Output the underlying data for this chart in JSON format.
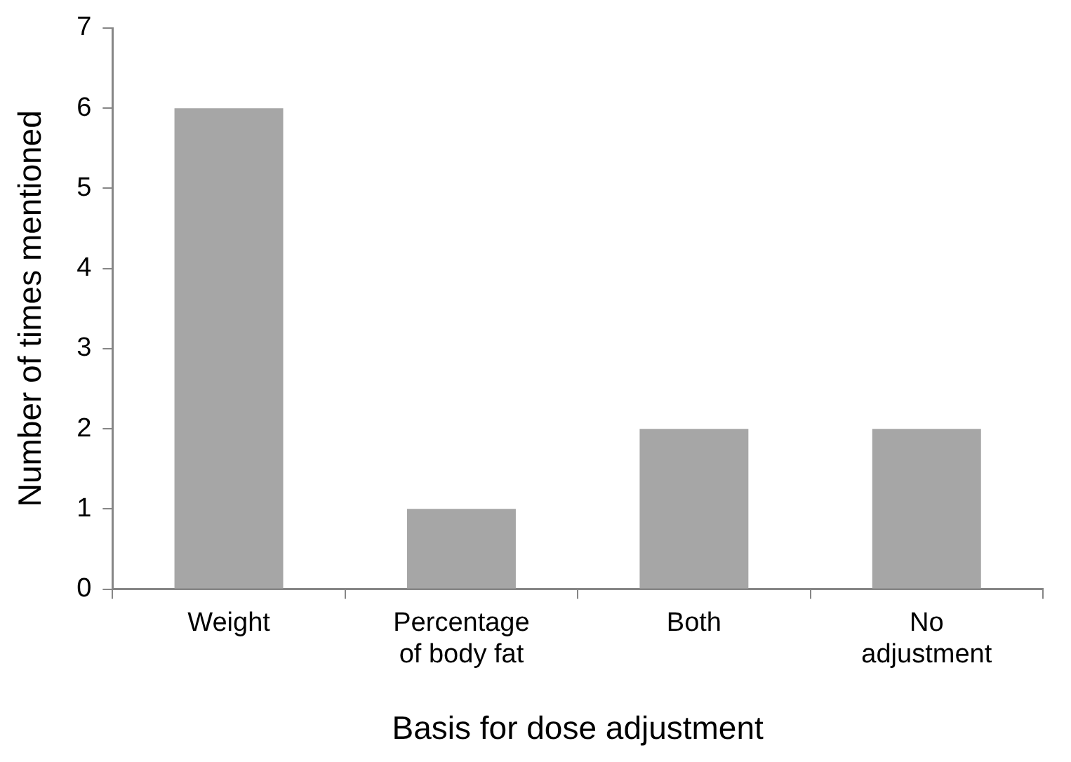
{
  "chart_data": {
    "type": "bar",
    "xlabel": "Basis for dose adjustment",
    "ylabel": "Number of times mentioned",
    "categories": [
      "Weight",
      "Percentage of body fat",
      "Both",
      "No adjustment"
    ],
    "values": [
      6,
      1,
      2,
      2
    ],
    "color": "#a6a6a6",
    "ylim": [
      0,
      7
    ],
    "yticks": [
      0,
      1,
      2,
      3,
      4,
      5,
      6,
      7
    ],
    "grid": false,
    "legend": false
  }
}
